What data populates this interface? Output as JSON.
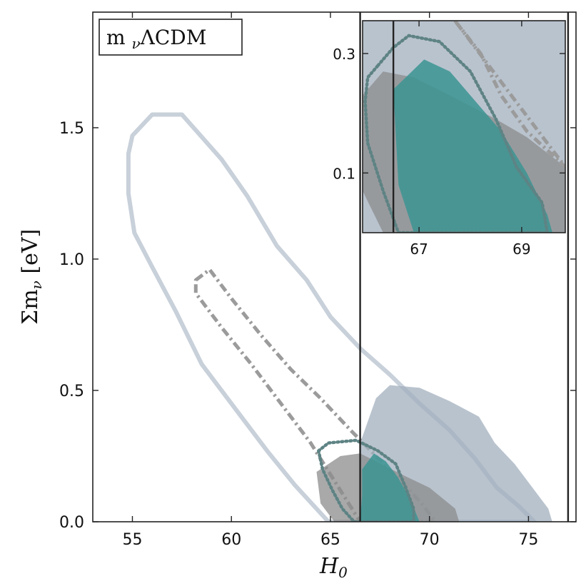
{
  "chart_data": {
    "type": "contour",
    "title": "m_νΛCDM",
    "xlabel": "H",
    "xlabel_subscript": "0",
    "ylabel": "Σm",
    "ylabel_subscript": "ν",
    "ylabel_units": " [eV]",
    "xlim": [
      53,
      77.4
    ],
    "ylim": [
      0,
      1.94
    ],
    "xticks": [
      55,
      60,
      65,
      70,
      75
    ],
    "yticks": [
      0.0,
      0.5,
      1.0,
      1.5
    ],
    "xtick_labels": [
      "55",
      "60",
      "65",
      "70",
      "75"
    ],
    "ytick_labels": [
      "0.0",
      "0.5",
      "1.0",
      "1.5"
    ],
    "vertical_lines": [
      66.5,
      77.0
    ],
    "colors": {
      "outline_light": "#c8d0da",
      "slate_fill": "#a2afbd",
      "gray_fill": "#8c8c8c",
      "teal_fill": "#3b9493",
      "dashdot_gray": "#9b9b9b",
      "dotted_teal": "#5e8384",
      "frame": "#222222"
    },
    "series": [
      {
        "name": "light outline contour",
        "style": "solid-line",
        "color": "#c8d0da",
        "points": [
          [
            55.0,
            1.47
          ],
          [
            56.0,
            1.55
          ],
          [
            57.5,
            1.55
          ],
          [
            59.5,
            1.38
          ],
          [
            60.8,
            1.24
          ],
          [
            62.3,
            1.05
          ],
          [
            63.8,
            0.92
          ],
          [
            65.0,
            0.78
          ],
          [
            66.5,
            0.66
          ],
          [
            68.0,
            0.56
          ],
          [
            69.5,
            0.45
          ],
          [
            71.0,
            0.35
          ],
          [
            72.3,
            0.24
          ],
          [
            73.4,
            0.13
          ],
          [
            74.5,
            0.06
          ],
          [
            75.3,
            0.0
          ],
          [
            64.9,
            0.0
          ],
          [
            63.2,
            0.14
          ],
          [
            61.8,
            0.27
          ],
          [
            60.3,
            0.42
          ],
          [
            58.5,
            0.6
          ],
          [
            57.2,
            0.8
          ],
          [
            56.0,
            0.97
          ],
          [
            55.1,
            1.1
          ],
          [
            54.8,
            1.25
          ],
          [
            54.8,
            1.4
          ]
        ]
      },
      {
        "name": "gray dash-dot contour",
        "style": "dashdot-line",
        "color": "#9b9b9b",
        "points": [
          [
            58.2,
            0.92
          ],
          [
            58.9,
            0.96
          ],
          [
            60.0,
            0.85
          ],
          [
            61.5,
            0.71
          ],
          [
            63.0,
            0.58
          ],
          [
            64.5,
            0.47
          ],
          [
            66.0,
            0.35
          ],
          [
            67.3,
            0.25
          ],
          [
            68.5,
            0.16
          ],
          [
            69.6,
            0.07
          ],
          [
            70.3,
            0.0
          ],
          [
            66.5,
            0.0
          ],
          [
            65.5,
            0.12
          ],
          [
            64.0,
            0.3
          ],
          [
            62.5,
            0.45
          ],
          [
            61.0,
            0.6
          ],
          [
            59.5,
            0.74
          ],
          [
            58.2,
            0.87
          ]
        ]
      },
      {
        "name": "slate filled region",
        "style": "filled",
        "color": "#a2afbd",
        "points": [
          [
            66.5,
            0.3
          ],
          [
            67.3,
            0.47
          ],
          [
            68.0,
            0.52
          ],
          [
            69.5,
            0.51
          ],
          [
            71.0,
            0.46
          ],
          [
            72.5,
            0.4
          ],
          [
            73.3,
            0.3
          ],
          [
            74.3,
            0.22
          ],
          [
            75.3,
            0.12
          ],
          [
            76.0,
            0.05
          ],
          [
            76.2,
            0.0
          ],
          [
            66.5,
            0.0
          ]
        ]
      },
      {
        "name": "gray filled region",
        "style": "filled",
        "color": "#8c8c8c",
        "points": [
          [
            64.3,
            0.19
          ],
          [
            65.5,
            0.25
          ],
          [
            66.5,
            0.26
          ],
          [
            67.3,
            0.23
          ],
          [
            68.6,
            0.18
          ],
          [
            70.0,
            0.13
          ],
          [
            71.3,
            0.05
          ],
          [
            71.5,
            0.0
          ],
          [
            65.2,
            0.0
          ],
          [
            64.5,
            0.07
          ]
        ]
      },
      {
        "name": "teal filled region",
        "style": "filled",
        "color": "#3b9493",
        "points": [
          [
            66.6,
            0.2
          ],
          [
            67.2,
            0.26
          ],
          [
            67.8,
            0.23
          ],
          [
            68.4,
            0.17
          ],
          [
            69.0,
            0.09
          ],
          [
            69.5,
            0.0
          ],
          [
            66.5,
            0.0
          ],
          [
            66.6,
            0.1
          ]
        ]
      },
      {
        "name": "teal dotted contour",
        "style": "dotted-line",
        "color": "#5e8384",
        "points": [
          [
            64.4,
            0.27
          ],
          [
            64.9,
            0.3
          ],
          [
            66.3,
            0.31
          ],
          [
            67.4,
            0.27
          ],
          [
            68.3,
            0.22
          ],
          [
            68.8,
            0.13
          ],
          [
            69.2,
            0.05
          ],
          [
            69.2,
            0.0
          ],
          [
            66.2,
            0.0
          ],
          [
            65.6,
            0.05
          ],
          [
            65.1,
            0.12
          ],
          [
            64.6,
            0.2
          ]
        ]
      }
    ],
    "inset": {
      "xlim": [
        65.9,
        69.85
      ],
      "ylim": [
        0.0,
        0.355
      ],
      "xticks": [
        67,
        69
      ],
      "yticks": [
        0.1,
        0.3
      ],
      "xtick_labels": [
        "67",
        "69"
      ],
      "ytick_labels": [
        "0.1",
        "0.3"
      ],
      "vertical_line": 66.5,
      "series": [
        {
          "name": "slate filled region",
          "style": "filled",
          "color": "#a2afbd",
          "points": [
            [
              65.9,
              0.355
            ],
            [
              69.85,
              0.355
            ],
            [
              69.85,
              0.0
            ],
            [
              65.9,
              0.0
            ]
          ]
        },
        {
          "name": "gray filled region",
          "style": "filled",
          "color": "#8c8c8c",
          "points": [
            [
              65.9,
              0.23
            ],
            [
              66.3,
              0.27
            ],
            [
              66.9,
              0.26
            ],
            [
              67.6,
              0.23
            ],
            [
              68.5,
              0.19
            ],
            [
              69.1,
              0.16
            ],
            [
              69.85,
              0.11
            ],
            [
              69.85,
              0.0
            ],
            [
              66.3,
              0.0
            ],
            [
              65.9,
              0.07
            ]
          ]
        },
        {
          "name": "teal filled region",
          "style": "filled",
          "color": "#3b9493",
          "points": [
            [
              66.5,
              0.24
            ],
            [
              67.1,
              0.29
            ],
            [
              67.6,
              0.27
            ],
            [
              68.0,
              0.23
            ],
            [
              68.6,
              0.17
            ],
            [
              69.1,
              0.1
            ],
            [
              69.5,
              0.03
            ],
            [
              69.6,
              0.0
            ],
            [
              66.9,
              0.0
            ],
            [
              66.6,
              0.08
            ]
          ]
        },
        {
          "name": "teal dotted contour",
          "style": "dotted-line",
          "color": "#5e8384",
          "points": [
            [
              66.2,
              0.28
            ],
            [
              66.5,
              0.31
            ],
            [
              66.8,
              0.33
            ],
            [
              67.4,
              0.32
            ],
            [
              68.0,
              0.27
            ],
            [
              68.5,
              0.19
            ],
            [
              68.9,
              0.11
            ],
            [
              69.4,
              0.05
            ],
            [
              69.5,
              0.0
            ],
            [
              66.6,
              0.0
            ],
            [
              66.3,
              0.07
            ],
            [
              66.0,
              0.15
            ],
            [
              65.95,
              0.22
            ],
            [
              66.0,
              0.26
            ]
          ]
        },
        {
          "name": "gray dash-dot contour",
          "style": "dashdot-line",
          "color": "#9b9b9b",
          "points": [
            [
              67.7,
              0.355
            ],
            [
              68.2,
              0.3
            ],
            [
              68.6,
              0.23
            ],
            [
              69.1,
              0.17
            ],
            [
              69.85,
              0.11
            ]
          ]
        }
      ]
    }
  }
}
